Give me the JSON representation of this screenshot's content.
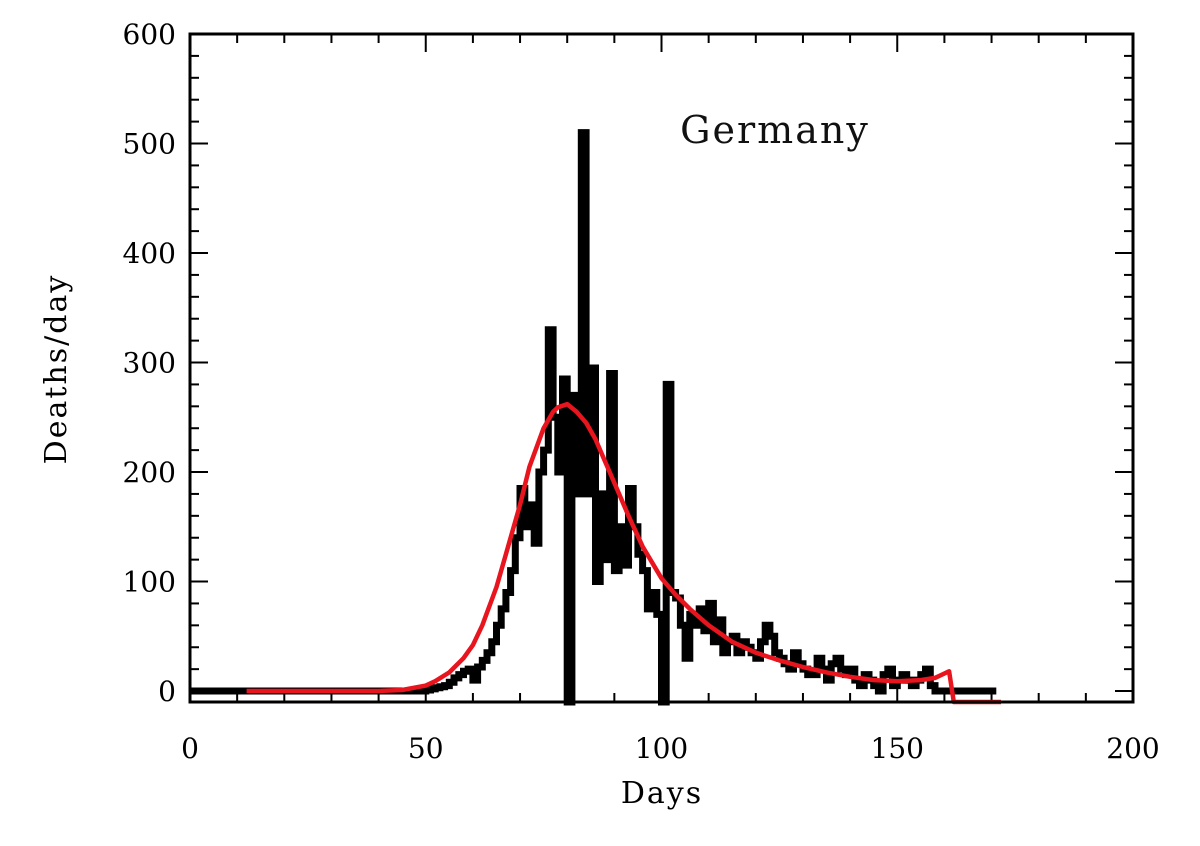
{
  "chart_data": {
    "type": "line",
    "title": "",
    "annotation": "Germany",
    "xlabel": "Days",
    "ylabel": "Deaths/day",
    "xlim": [
      0,
      200
    ],
    "ylim": [
      -10,
      600
    ],
    "x_ticks": [
      0,
      50,
      100,
      150,
      200
    ],
    "y_ticks": [
      0,
      100,
      200,
      300,
      400,
      500,
      600
    ],
    "grid": false,
    "legend": "none",
    "series": [
      {
        "style": "step",
        "color": "#000000",
        "x": [
          0,
          5,
          10,
          15,
          20,
          25,
          30,
          35,
          40,
          45,
          50,
          51,
          52,
          53,
          54,
          55,
          56,
          57,
          58,
          59,
          60,
          61,
          62,
          63,
          64,
          65,
          66,
          67,
          68,
          69,
          70,
          71,
          72,
          73,
          74,
          75,
          76,
          77,
          78,
          79,
          80,
          81,
          82,
          83,
          84,
          85,
          86,
          87,
          88,
          89,
          90,
          91,
          92,
          93,
          94,
          95,
          96,
          97,
          98,
          99,
          100,
          101,
          102,
          103,
          104,
          105,
          106,
          107,
          108,
          109,
          110,
          111,
          112,
          113,
          114,
          115,
          116,
          117,
          118,
          119,
          120,
          121,
          122,
          123,
          124,
          125,
          126,
          127,
          128,
          129,
          130,
          131,
          132,
          133,
          134,
          135,
          136,
          137,
          138,
          139,
          140,
          141,
          142,
          143,
          144,
          145,
          146,
          147,
          148,
          149,
          150,
          151,
          152,
          153,
          154,
          155,
          156,
          157,
          158,
          159,
          160,
          161,
          162,
          165,
          170
        ],
        "values": [
          0,
          0,
          0,
          0,
          0,
          0,
          0,
          0,
          0,
          0,
          1,
          2,
          3,
          4,
          5,
          8,
          12,
          15,
          18,
          20,
          10,
          22,
          28,
          35,
          45,
          60,
          75,
          90,
          110,
          140,
          185,
          150,
          170,
          135,
          200,
          220,
          330,
          250,
          200,
          285,
          -10,
          270,
          180,
          510,
          180,
          295,
          100,
          180,
          120,
          290,
          110,
          150,
          115,
          185,
          150,
          125,
          110,
          75,
          90,
          70,
          -10,
          280,
          90,
          85,
          60,
          30,
          70,
          60,
          75,
          55,
          80,
          45,
          65,
          35,
          45,
          50,
          35,
          45,
          40,
          35,
          30,
          45,
          60,
          50,
          35,
          30,
          25,
          20,
          35,
          25,
          20,
          15,
          15,
          30,
          20,
          10,
          25,
          30,
          20,
          15,
          20,
          10,
          5,
          15,
          10,
          5,
          0,
          15,
          20,
          5,
          10,
          15,
          10,
          5,
          10,
          15,
          20,
          5,
          0,
          0,
          0,
          0,
          0,
          0,
          0
        ]
      },
      {
        "style": "line",
        "color": "#e8141e",
        "x": [
          12,
          20,
          30,
          40,
          45,
          50,
          52,
          55,
          58,
          60,
          62,
          65,
          67,
          70,
          72,
          75,
          77,
          78,
          80,
          82,
          84,
          86,
          88,
          90,
          93,
          96,
          100,
          103,
          106,
          110,
          115,
          120,
          125,
          130,
          135,
          140,
          145,
          150,
          155,
          158,
          160,
          161,
          162,
          165,
          170,
          172
        ],
        "values": [
          0,
          0,
          0,
          0,
          1,
          5,
          9,
          17,
          30,
          42,
          60,
          95,
          125,
          170,
          205,
          240,
          255,
          259,
          262,
          255,
          245,
          230,
          210,
          190,
          160,
          132,
          103,
          88,
          75,
          60,
          45,
          35,
          28,
          22,
          17,
          13,
          10,
          9,
          10,
          12,
          16,
          18,
          -10,
          -10,
          -10,
          -10
        ]
      }
    ]
  }
}
